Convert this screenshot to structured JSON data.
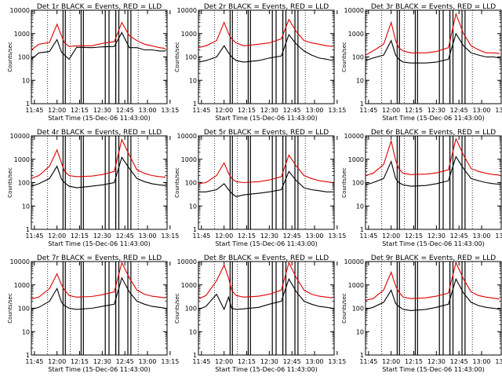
{
  "chart_data": [
    {
      "type": "line",
      "title": "Det 1r BLACK = Events, RED = LLD",
      "xlabel": "Start Time (15-Dec-06 11:43:00)",
      "ylabel": "Counts/sec",
      "x_ticks": [
        "11:45",
        "12:00",
        "12:15",
        "12:30",
        "12:45",
        "13:00",
        "13:15"
      ],
      "y_ticks": [
        "1",
        "10",
        "100",
        "1000",
        "10000"
      ],
      "yscale": "log",
      "ylim": [
        1,
        10000
      ],
      "series": [
        {
          "name": "BLACK = Events",
          "color": "#000000",
          "x_min": [
            0,
            5,
            12,
            17,
            20,
            22,
            25,
            30,
            40,
            47,
            55,
            60,
            65,
            70,
            75,
            80,
            85,
            89
          ],
          "values": [
            80,
            150,
            170,
            550,
            160,
            120,
            80,
            260,
            250,
            270,
            280,
            1100,
            250,
            250,
            200,
            200,
            180,
            180
          ]
        },
        {
          "name": "RED = LLD",
          "color": "#e00000",
          "x_min": [
            0,
            5,
            12,
            17,
            20,
            22,
            25,
            30,
            40,
            47,
            55,
            60,
            65,
            70,
            75,
            80,
            85,
            89
          ],
          "values": [
            200,
            350,
            420,
            2500,
            800,
            400,
            280,
            300,
            300,
            380,
            450,
            3000,
            800,
            500,
            350,
            300,
            250,
            230
          ]
        }
      ]
    },
    {
      "type": "line",
      "title": "Det 2r BLACK = Events, RED = LLD",
      "xlabel": "Start Time (15-Dec-06 11:43:00)",
      "ylabel": "Counts/sec",
      "x_ticks": [
        "11:45",
        "12:00",
        "12:15",
        "12:30",
        "12:45",
        "13:00",
        "13:15"
      ],
      "y_ticks": [
        "1",
        "10",
        "100",
        "1000",
        "10000"
      ],
      "yscale": "log",
      "ylim": [
        1,
        10000
      ],
      "series": [
        {
          "name": "BLACK = Events",
          "color": "#000000",
          "x_min": [
            0,
            5,
            12,
            17,
            20,
            22,
            25,
            30,
            40,
            47,
            55,
            60,
            65,
            70,
            75,
            80,
            85,
            89
          ],
          "values": [
            60,
            70,
            100,
            300,
            150,
            100,
            70,
            60,
            70,
            90,
            110,
            900,
            350,
            180,
            120,
            90,
            80,
            70
          ]
        },
        {
          "name": "RED = LLD",
          "color": "#e00000",
          "x_min": [
            0,
            5,
            12,
            17,
            20,
            22,
            25,
            30,
            40,
            47,
            55,
            60,
            65,
            70,
            75,
            80,
            85,
            89
          ],
          "values": [
            250,
            300,
            500,
            3000,
            1000,
            600,
            400,
            300,
            350,
            400,
            600,
            4000,
            1200,
            500,
            400,
            350,
            300,
            280
          ]
        }
      ]
    },
    {
      "type": "line",
      "title": "Det 3r BLACK = Events, RED = LLD",
      "xlabel": "Start Time (15-Dec-06 11:43:00)",
      "ylabel": "Counts/sec",
      "x_ticks": [
        "11:45",
        "12:00",
        "12:15",
        "12:30",
        "12:45",
        "13:00",
        "13:15"
      ],
      "y_ticks": [
        "1",
        "10",
        "100",
        "1000",
        "10000"
      ],
      "yscale": "log",
      "ylim": [
        1,
        10000
      ],
      "series": [
        {
          "name": "BLACK = Events",
          "color": "#000000",
          "x_min": [
            0,
            5,
            12,
            17,
            20,
            22,
            25,
            30,
            40,
            47,
            55,
            60,
            65,
            70,
            75,
            80,
            85,
            89
          ],
          "values": [
            70,
            90,
            120,
            500,
            120,
            80,
            60,
            55,
            55,
            60,
            80,
            1000,
            300,
            150,
            120,
            100,
            100,
            90
          ]
        },
        {
          "name": "RED = LLD",
          "color": "#e00000",
          "x_min": [
            0,
            5,
            12,
            17,
            20,
            22,
            25,
            30,
            40,
            47,
            55,
            60,
            65,
            70,
            75,
            80,
            85,
            89
          ],
          "values": [
            120,
            180,
            350,
            3000,
            500,
            250,
            180,
            150,
            150,
            170,
            250,
            7000,
            1000,
            300,
            200,
            150,
            150,
            140
          ]
        }
      ]
    },
    {
      "type": "line",
      "title": "Det 4r BLACK = Events, RED = LLD",
      "xlabel": "Start Time (15-Dec-06 11:43:00)",
      "ylabel": "Counts/sec",
      "x_ticks": [
        "11:45",
        "12:00",
        "12:15",
        "12:30",
        "12:45",
        "13:00",
        "13:15"
      ],
      "y_ticks": [
        "1",
        "10",
        "100",
        "1000",
        "10000"
      ],
      "yscale": "log",
      "ylim": [
        1,
        10000
      ],
      "series": [
        {
          "name": "BLACK = Events",
          "color": "#000000",
          "x_min": [
            0,
            5,
            12,
            17,
            20,
            22,
            25,
            30,
            40,
            47,
            55,
            60,
            65,
            70,
            75,
            80,
            85,
            89
          ],
          "values": [
            70,
            90,
            150,
            500,
            140,
            100,
            70,
            60,
            70,
            80,
            100,
            1200,
            400,
            150,
            110,
            90,
            80,
            75
          ]
        },
        {
          "name": "RED = LLD",
          "color": "#e00000",
          "x_min": [
            0,
            5,
            12,
            17,
            20,
            22,
            25,
            30,
            40,
            47,
            55,
            60,
            65,
            70,
            75,
            80,
            85,
            89
          ],
          "values": [
            150,
            200,
            500,
            2500,
            700,
            300,
            200,
            180,
            190,
            220,
            300,
            7000,
            1500,
            350,
            250,
            200,
            180,
            170
          ]
        }
      ]
    },
    {
      "type": "line",
      "title": "Det 5r BLACK = Events, RED = LLD",
      "xlabel": "Start Time (15-Dec-06 11:43:00)",
      "ylabel": "Counts/sec",
      "x_ticks": [
        "11:45",
        "12:00",
        "12:15",
        "12:30",
        "12:45",
        "13:00",
        "13:15"
      ],
      "y_ticks": [
        "1",
        "10",
        "100",
        "1000",
        "10000"
      ],
      "yscale": "log",
      "ylim": [
        1,
        10000
      ],
      "series": [
        {
          "name": "BLACK = Events",
          "color": "#000000",
          "x_min": [
            0,
            5,
            12,
            17,
            20,
            22,
            25,
            30,
            40,
            47,
            55,
            60,
            65,
            70,
            75,
            80,
            85,
            89
          ],
          "values": [
            40,
            40,
            50,
            90,
            50,
            35,
            25,
            30,
            35,
            40,
            50,
            300,
            120,
            60,
            50,
            45,
            40,
            40
          ]
        },
        {
          "name": "RED = LLD",
          "color": "#e00000",
          "x_min": [
            0,
            5,
            12,
            17,
            20,
            22,
            25,
            30,
            40,
            47,
            55,
            60,
            65,
            70,
            75,
            80,
            85,
            89
          ],
          "values": [
            90,
            100,
            200,
            700,
            250,
            150,
            110,
            100,
            110,
            130,
            180,
            1500,
            500,
            200,
            150,
            120,
            110,
            100
          ]
        }
      ]
    },
    {
      "type": "line",
      "title": "Det 6r BLACK = Events, RED = LLD",
      "xlabel": "Start Time (15-Dec-06 11:43:00)",
      "ylabel": "Counts/sec",
      "x_ticks": [
        "11:45",
        "12:00",
        "12:15",
        "12:30",
        "12:45",
        "13:00",
        "13:15"
      ],
      "y_ticks": [
        "1",
        "10",
        "100",
        "1000",
        "10000"
      ],
      "yscale": "log",
      "ylim": [
        1,
        10000
      ],
      "series": [
        {
          "name": "BLACK = Events",
          "color": "#000000",
          "x_min": [
            0,
            5,
            12,
            17,
            20,
            22,
            25,
            30,
            40,
            47,
            55,
            60,
            65,
            70,
            75,
            80,
            85,
            89
          ],
          "values": [
            80,
            100,
            150,
            800,
            150,
            100,
            80,
            70,
            75,
            90,
            120,
            1300,
            400,
            150,
            120,
            100,
            90,
            85
          ]
        },
        {
          "name": "RED = LLD",
          "color": "#e00000",
          "x_min": [
            0,
            5,
            12,
            17,
            20,
            22,
            25,
            30,
            40,
            47,
            55,
            60,
            65,
            70,
            75,
            80,
            85,
            89
          ],
          "values": [
            200,
            250,
            600,
            6000,
            900,
            400,
            250,
            220,
            230,
            260,
            350,
            7500,
            1500,
            400,
            300,
            250,
            220,
            210
          ]
        }
      ]
    },
    {
      "type": "line",
      "title": "Det 7r BLACK = Events, RED = LLD",
      "xlabel": "Start Time (15-Dec-06 11:43:00)",
      "ylabel": "Counts/sec",
      "x_ticks": [
        "11:45",
        "12:00",
        "12:15",
        "12:30",
        "12:45",
        "13:00",
        "13:15"
      ],
      "y_ticks": [
        "1",
        "10",
        "100",
        "1000",
        "10000"
      ],
      "yscale": "log",
      "ylim": [
        1,
        10000
      ],
      "series": [
        {
          "name": "BLACK = Events",
          "color": "#000000",
          "x_min": [
            0,
            5,
            12,
            17,
            20,
            22,
            25,
            30,
            40,
            47,
            55,
            60,
            65,
            70,
            75,
            80,
            85,
            89
          ],
          "values": [
            90,
            110,
            200,
            700,
            180,
            130,
            100,
            90,
            100,
            120,
            150,
            2000,
            500,
            200,
            150,
            120,
            110,
            100
          ]
        },
        {
          "name": "RED = LLD",
          "color": "#e00000",
          "x_min": [
            0,
            5,
            12,
            17,
            20,
            22,
            25,
            30,
            40,
            47,
            55,
            60,
            65,
            70,
            75,
            80,
            85,
            89
          ],
          "values": [
            250,
            300,
            700,
            3000,
            1000,
            600,
            350,
            300,
            320,
            380,
            500,
            9000,
            2000,
            600,
            400,
            330,
            300,
            280
          ]
        }
      ]
    },
    {
      "type": "line",
      "title": "Det 8r BLACK = Events, RED = LLD",
      "xlabel": "Start Time (15-Dec-06 11:43:00)",
      "ylabel": "Counts/sec",
      "x_ticks": [
        "11:45",
        "12:00",
        "12:15",
        "12:30",
        "12:45",
        "13:00",
        "13:15"
      ],
      "y_ticks": [
        "1",
        "10",
        "100",
        "1000",
        "10000"
      ],
      "yscale": "log",
      "ylim": [
        1,
        10000
      ],
      "series": [
        {
          "name": "BLACK = Events",
          "color": "#000000",
          "x_min": [
            0,
            5,
            12,
            17,
            20,
            22,
            25,
            30,
            40,
            47,
            55,
            60,
            65,
            70,
            75,
            80,
            85,
            89
          ],
          "values": [
            90,
            120,
            400,
            90,
            300,
            100,
            90,
            95,
            110,
            150,
            200,
            1800,
            500,
            200,
            150,
            120,
            110,
            100
          ]
        },
        {
          "name": "RED = LLD",
          "color": "#e00000",
          "x_min": [
            0,
            5,
            12,
            17,
            20,
            22,
            25,
            30,
            40,
            47,
            55,
            60,
            65,
            70,
            75,
            80,
            85,
            89
          ],
          "values": [
            250,
            350,
            1500,
            7000,
            2000,
            600,
            350,
            300,
            330,
            400,
            600,
            9000,
            2000,
            600,
            400,
            330,
            300,
            280
          ]
        }
      ]
    },
    {
      "type": "line",
      "title": "Det 9r BLACK = Events, RED = LLD",
      "xlabel": "Start Time (15-Dec-06 11:43:00)",
      "ylabel": "Counts/sec",
      "x_ticks": [
        "11:45",
        "12:00",
        "12:15",
        "12:30",
        "12:45",
        "13:00",
        "13:15"
      ],
      "y_ticks": [
        "1",
        "10",
        "100",
        "1000",
        "10000"
      ],
      "yscale": "log",
      "ylim": [
        1,
        10000
      ],
      "series": [
        {
          "name": "BLACK = Events",
          "color": "#000000",
          "x_min": [
            0,
            5,
            12,
            17,
            20,
            22,
            25,
            30,
            40,
            47,
            55,
            60,
            65,
            70,
            75,
            80,
            85,
            89
          ],
          "values": [
            90,
            110,
            180,
            600,
            160,
            120,
            90,
            80,
            90,
            110,
            150,
            1800,
            450,
            180,
            130,
            110,
            100,
            90
          ]
        },
        {
          "name": "RED = LLD",
          "color": "#e00000",
          "x_min": [
            0,
            5,
            12,
            17,
            20,
            22,
            25,
            30,
            40,
            47,
            55,
            60,
            65,
            70,
            75,
            80,
            85,
            89
          ],
          "values": [
            220,
            260,
            600,
            3500,
            900,
            500,
            300,
            260,
            280,
            330,
            450,
            9000,
            1800,
            500,
            350,
            300,
            270,
            250
          ]
        }
      ]
    }
  ]
}
